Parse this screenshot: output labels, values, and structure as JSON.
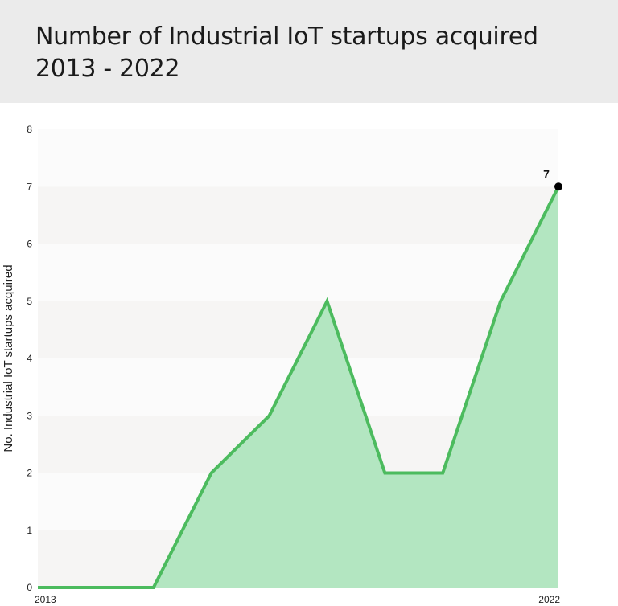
{
  "title_line1": "Number of Industrial IoT startups acquired",
  "title_line2": "2013 - 2022",
  "chart_data": {
    "type": "area",
    "x": [
      2013,
      2014,
      2015,
      2016,
      2017,
      2018,
      2019,
      2020,
      2021,
      2022
    ],
    "values": [
      0,
      0,
      0,
      2,
      3,
      5,
      2,
      2,
      5,
      7
    ],
    "xtick_labels": [
      "2013",
      "2022"
    ],
    "ylabel": "No. Industrial IoT startups acquired",
    "ylim": [
      0,
      8
    ],
    "yticks": [
      0,
      1,
      2,
      3,
      4,
      5,
      6,
      7,
      8
    ],
    "annotations": [
      {
        "x": 2022,
        "text": "7"
      }
    ],
    "line_color": "#4cbb5e",
    "fill_color": "#b3e6c1",
    "band_colors": [
      "#f6f5f4",
      "#fbfbfb"
    ],
    "grid": false
  }
}
